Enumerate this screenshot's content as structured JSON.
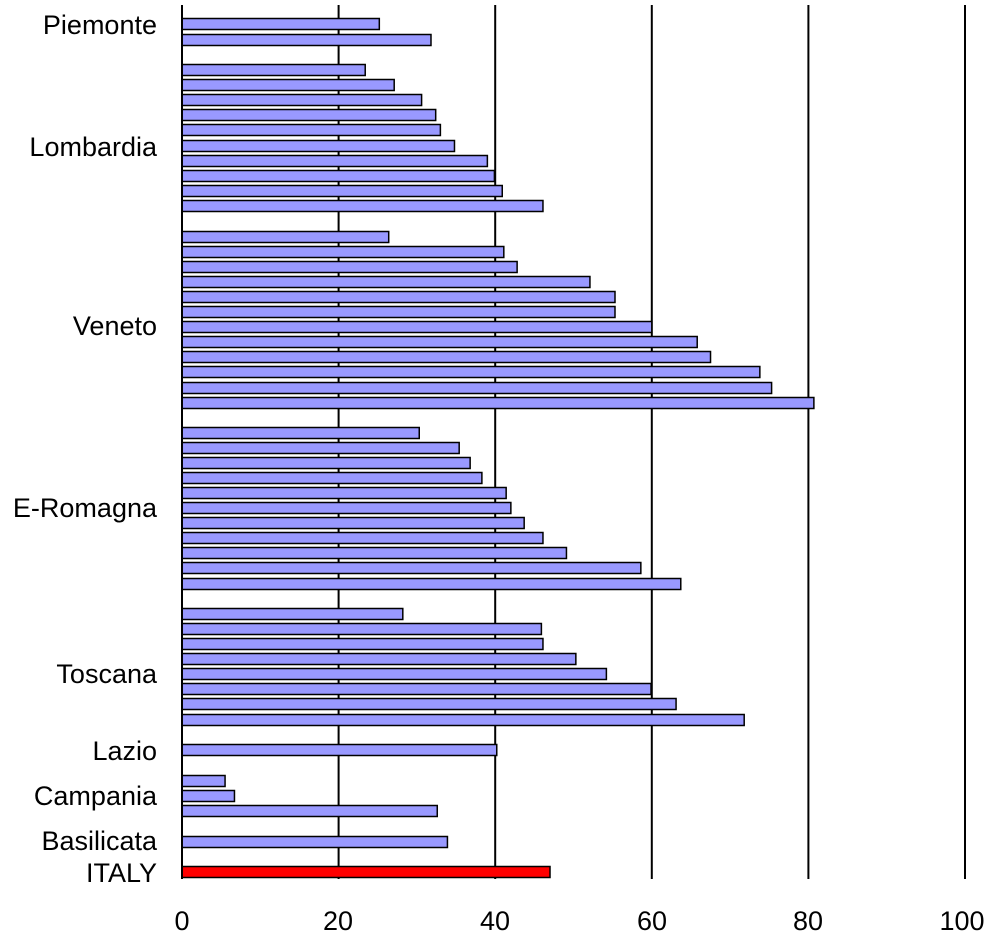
{
  "chart_data": {
    "type": "bar",
    "orientation": "horizontal",
    "title": "",
    "xlabel": "",
    "ylabel": "",
    "xlim": [
      0,
      100
    ],
    "x_ticks": [
      "0",
      "20",
      "40",
      "60",
      "80",
      "100"
    ],
    "grid": "vertical",
    "legend": "none",
    "colors": {
      "bar": "#9999ff",
      "highlight": "#ff0000",
      "edge": "#000000",
      "grid": "#000000"
    },
    "groups": [
      {
        "label": "Piemonte",
        "values": [
          25.2,
          31.8
        ]
      },
      {
        "label": "Lombardia",
        "values": [
          23.4,
          27.1,
          30.6,
          32.4,
          33.0,
          34.8,
          39.0,
          39.9,
          40.9,
          46.1
        ]
      },
      {
        "label": "Veneto",
        "values": [
          26.4,
          41.1,
          42.8,
          52.1,
          55.3,
          55.3,
          60.0,
          65.8,
          67.5,
          73.8,
          75.3,
          80.7
        ]
      },
      {
        "label": "E-Romagna",
        "values": [
          30.3,
          35.4,
          36.8,
          38.3,
          41.4,
          42.0,
          43.7,
          46.1,
          49.1,
          58.6,
          63.7
        ]
      },
      {
        "label": "Toscana",
        "values": [
          28.2,
          45.9,
          46.1,
          50.3,
          54.2,
          59.9,
          63.1,
          71.8
        ]
      },
      {
        "label": "Lazio",
        "values": [
          40.2
        ]
      },
      {
        "label": "Campania",
        "values": [
          5.5,
          6.7,
          32.6
        ]
      },
      {
        "label": "Basilicata",
        "values": [
          33.9
        ]
      },
      {
        "label": "ITALY",
        "values": [
          47.0
        ],
        "highlight": true
      }
    ]
  }
}
